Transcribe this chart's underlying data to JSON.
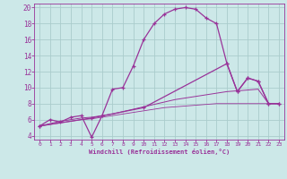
{
  "background_color": "#cce8e8",
  "grid_color": "#aacccc",
  "line_color": "#993399",
  "xlabel": "Windchill (Refroidissement éolien,°C)",
  "xlim": [
    -0.5,
    23.5
  ],
  "ylim": [
    3.5,
    20.5
  ],
  "yticks": [
    4,
    6,
    8,
    10,
    12,
    14,
    16,
    18,
    20
  ],
  "xticks": [
    0,
    1,
    2,
    3,
    4,
    5,
    6,
    7,
    8,
    9,
    10,
    11,
    12,
    13,
    14,
    15,
    16,
    17,
    18,
    19,
    20,
    21,
    22,
    23
  ],
  "line1_x": [
    0,
    1,
    2,
    3,
    4,
    5,
    6,
    7,
    8,
    9,
    10,
    11,
    12,
    13,
    14,
    15,
    16,
    17,
    18,
    19,
    20,
    21,
    22,
    23
  ],
  "line1_y": [
    5.2,
    6.0,
    5.7,
    6.3,
    6.5,
    3.8,
    6.5,
    9.8,
    10.0,
    12.7,
    16.0,
    18.0,
    19.2,
    19.8,
    20.0,
    19.8,
    18.7,
    18.0,
    13.0,
    9.5,
    11.2,
    10.8,
    8.0,
    8.0
  ],
  "line2_x": [
    0,
    5,
    10,
    18,
    19,
    20,
    21,
    22,
    23
  ],
  "line2_y": [
    5.2,
    6.2,
    7.5,
    13.0,
    9.5,
    11.2,
    10.8,
    8.0,
    8.0
  ],
  "line3_x": [
    0,
    1,
    2,
    3,
    4,
    5,
    6,
    7,
    8,
    9,
    10,
    11,
    12,
    13,
    14,
    15,
    16,
    17,
    18,
    19,
    20,
    21,
    22,
    23
  ],
  "line3_y": [
    5.2,
    5.5,
    5.8,
    6.0,
    6.2,
    6.3,
    6.5,
    6.7,
    7.0,
    7.3,
    7.6,
    7.9,
    8.2,
    8.5,
    8.7,
    8.9,
    9.1,
    9.3,
    9.5,
    9.6,
    9.7,
    9.8,
    8.0,
    8.0
  ],
  "line4_x": [
    0,
    1,
    2,
    3,
    4,
    5,
    6,
    7,
    8,
    9,
    10,
    11,
    12,
    13,
    14,
    15,
    16,
    17,
    18,
    19,
    20,
    21,
    22,
    23
  ],
  "line4_y": [
    5.2,
    5.4,
    5.6,
    5.8,
    6.0,
    6.1,
    6.3,
    6.5,
    6.7,
    6.9,
    7.1,
    7.3,
    7.5,
    7.6,
    7.7,
    7.8,
    7.9,
    8.0,
    8.0,
    8.0,
    8.0,
    8.0,
    8.0,
    8.0
  ]
}
